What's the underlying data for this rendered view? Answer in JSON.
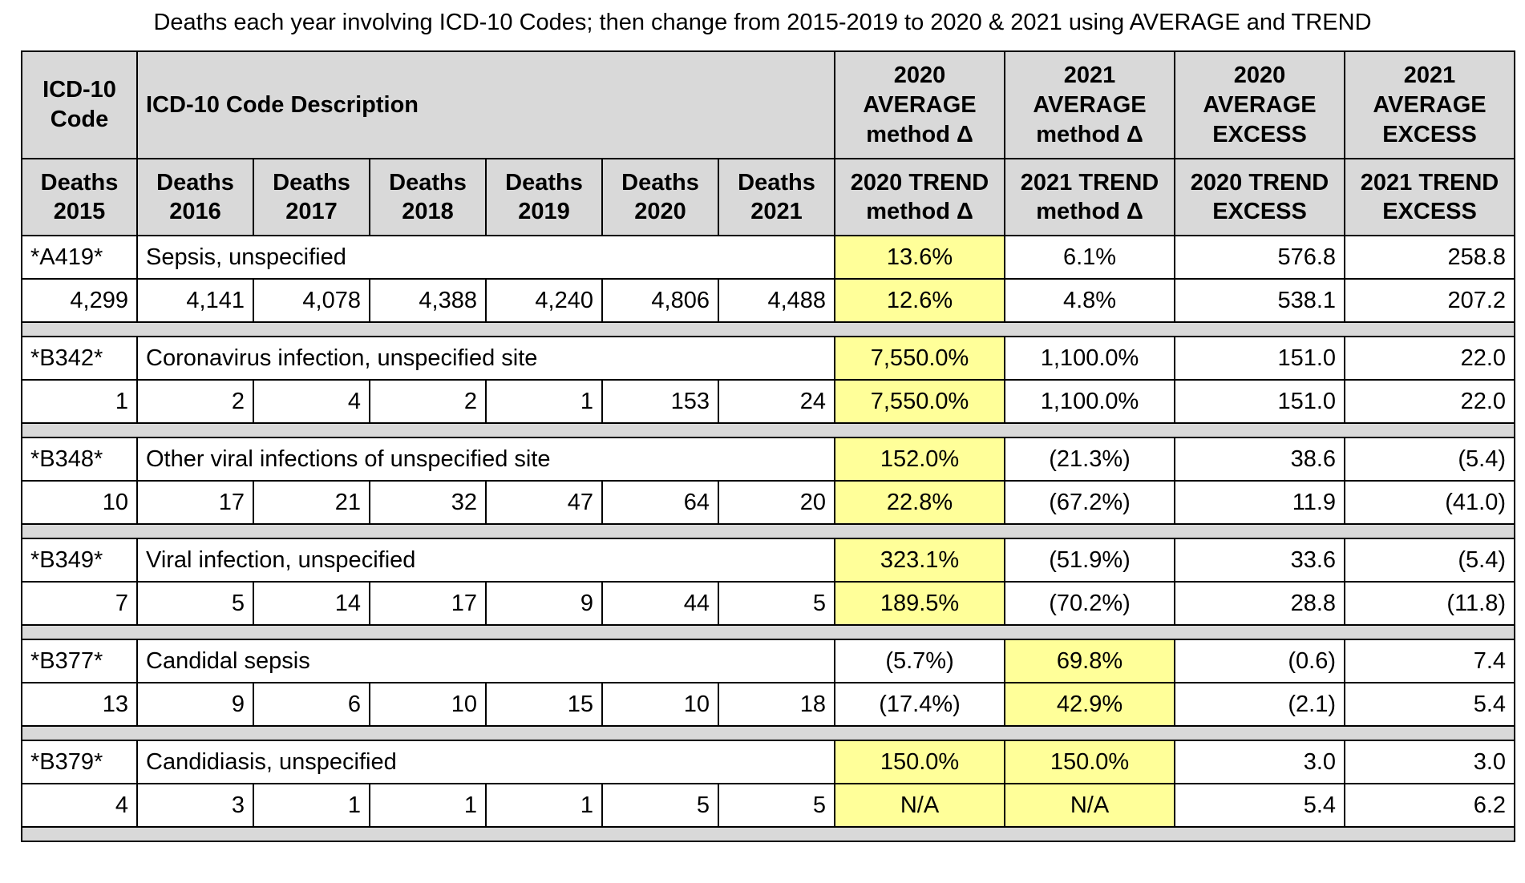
{
  "title": "Deaths each year involving ICD-10 Codes; then change from 2015-2019 to 2020 & 2021 using AVERAGE and TREND",
  "header": {
    "code_label_1": "ICD-10",
    "code_label_2": "Code",
    "desc_label": "ICD-10 Code Description",
    "avg_2020_1": "2020",
    "avg_2020_2": "AVERAGE",
    "avg_2020_3": "method Δ",
    "avg_2021_1": "2021",
    "avg_2021_2": "AVERAGE",
    "avg_2021_3": "method Δ",
    "exc_2020_1": "2020",
    "exc_2020_2": "AVERAGE",
    "exc_2020_3": "EXCESS",
    "exc_2021_1": "2021",
    "exc_2021_2": "AVERAGE",
    "exc_2021_3": "EXCESS",
    "years": [
      {
        "l1": "Deaths",
        "l2": "2015"
      },
      {
        "l1": "Deaths",
        "l2": "2016"
      },
      {
        "l1": "Deaths",
        "l2": "2017"
      },
      {
        "l1": "Deaths",
        "l2": "2018"
      },
      {
        "l1": "Deaths",
        "l2": "2019"
      },
      {
        "l1": "Deaths",
        "l2": "2020"
      },
      {
        "l1": "Deaths",
        "l2": "2021"
      }
    ],
    "trend": [
      {
        "l1": "2020 TREND",
        "l2": "method Δ"
      },
      {
        "l1": "2021 TREND",
        "l2": "method Δ"
      },
      {
        "l1": "2020 TREND",
        "l2": "EXCESS"
      },
      {
        "l1": "2021 TREND",
        "l2": "EXCESS"
      }
    ]
  },
  "highlight_color": "#ffff99",
  "header_color": "#d9d9d9",
  "rows": [
    {
      "code": "*A419*",
      "desc": "Sepsis, unspecified",
      "deaths": [
        "4,299",
        "4,141",
        "4,078",
        "4,388",
        "4,240",
        "4,806",
        "4,488"
      ],
      "avg": [
        "13.6%",
        "6.1%",
        "576.8",
        "258.8"
      ],
      "trend": [
        "12.6%",
        "4.8%",
        "538.1",
        "207.2"
      ]
    },
    {
      "code": "*B342*",
      "desc": "Coronavirus infection, unspecified site",
      "deaths": [
        "1",
        "2",
        "4",
        "2",
        "1",
        "153",
        "24"
      ],
      "avg": [
        "7,550.0%",
        "1,100.0%",
        "151.0",
        "22.0"
      ],
      "trend": [
        "7,550.0%",
        "1,100.0%",
        "151.0",
        "22.0"
      ]
    },
    {
      "code": "*B348*",
      "desc": "Other viral infections of unspecified site",
      "deaths": [
        "10",
        "17",
        "21",
        "32",
        "47",
        "64",
        "20"
      ],
      "avg": [
        "152.0%",
        "(21.3%)",
        "38.6",
        "(5.4)"
      ],
      "trend": [
        "22.8%",
        "(67.2%)",
        "11.9",
        "(41.0)"
      ]
    },
    {
      "code": "*B349*",
      "desc": "Viral infection, unspecified",
      "deaths": [
        "7",
        "5",
        "14",
        "17",
        "9",
        "44",
        "5"
      ],
      "avg": [
        "323.1%",
        "(51.9%)",
        "33.6",
        "(5.4)"
      ],
      "trend": [
        "189.5%",
        "(70.2%)",
        "28.8",
        "(11.8)"
      ]
    },
    {
      "code": "*B377*",
      "desc": "Candidal sepsis",
      "deaths": [
        "13",
        "9",
        "6",
        "10",
        "15",
        "10",
        "18"
      ],
      "avg": [
        "(5.7%)",
        "69.8%",
        "(0.6)",
        "7.4"
      ],
      "trend": [
        "(17.4%)",
        "42.9%",
        "(2.1)",
        "5.4"
      ]
    },
    {
      "code": "*B379*",
      "desc": "Candidiasis, unspecified",
      "deaths": [
        "4",
        "3",
        "1",
        "1",
        "1",
        "5",
        "5"
      ],
      "avg": [
        "150.0%",
        "150.0%",
        "3.0",
        "3.0"
      ],
      "trend": [
        "N/A",
        "N/A",
        "5.4",
        "6.2"
      ]
    }
  ]
}
